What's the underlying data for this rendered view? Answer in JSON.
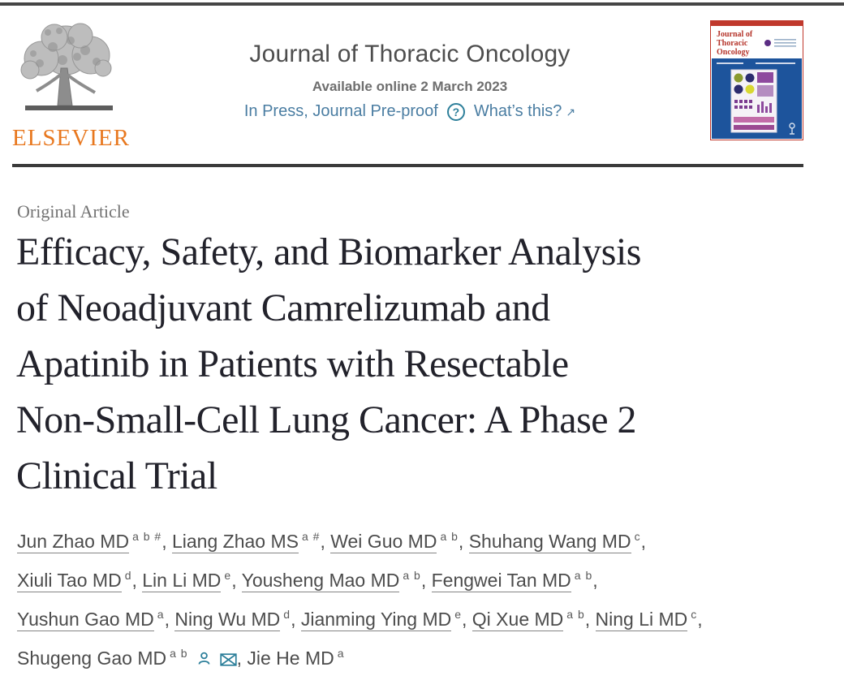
{
  "header": {
    "elsevier_wordmark": "ELSEVIER",
    "journal_title": "Journal of Thoracic Oncology",
    "available_online": "Available online 2 March 2023",
    "in_press_label": "In Press, Journal Pre-proof",
    "help_icon": "?",
    "whats_this_label": "What’s this?",
    "external_arrow": "↗"
  },
  "cover": {
    "title_lines": [
      "Journal of",
      "Thoracic",
      "Oncology"
    ]
  },
  "article": {
    "category": "Original Article",
    "title_lines": [
      "Efficacy, Safety, and Biomarker Analysis",
      "of Neoadjuvant Camrelizumab and",
      "Apatinib in Patients with Resectable",
      "Non-Small-Cell Lung Cancer: A Phase 2",
      "Clinical Trial"
    ]
  },
  "authors": {
    "lines": [
      [
        {
          "name": "Jun Zhao MD",
          "sup": "a b #",
          "underline": true
        },
        {
          "name": "Liang Zhao MS",
          "sup": "a #",
          "underline": true
        },
        {
          "name": "Wei Guo MD",
          "sup": "a b",
          "underline": true
        },
        {
          "name": "Shuhang Wang MD",
          "sup": "c",
          "underline": true
        }
      ],
      [
        {
          "name": "Xiuli Tao MD",
          "sup": "d",
          "underline": true
        },
        {
          "name": "Lin Li MD",
          "sup": "e",
          "underline": true
        },
        {
          "name": "Yousheng Mao MD",
          "sup": "a b",
          "underline": true
        },
        {
          "name": "Fengwei Tan MD",
          "sup": "a b",
          "underline": true
        }
      ],
      [
        {
          "name": "Yushun Gao MD",
          "sup": "a",
          "underline": true
        },
        {
          "name": "Ning Wu MD",
          "sup": "d",
          "underline": true
        },
        {
          "name": "Jianming Ying MD",
          "sup": "e",
          "underline": true
        },
        {
          "name": "Qi Xue MD",
          "sup": "a b",
          "underline": true
        },
        {
          "name": "Ning Li MD",
          "sup": "c",
          "underline": true
        }
      ],
      [
        {
          "name": "Shugeng Gao MD",
          "sup": "a b",
          "underline": false,
          "icons": [
            "person",
            "envelope"
          ]
        },
        {
          "name": "Jie He MD",
          "sup": "a",
          "underline": false,
          "last": true
        }
      ]
    ]
  },
  "colors": {
    "link_blue": "#4a7da2",
    "icon_teal": "#2d7f9a",
    "elsevier_orange": "#e8781f",
    "cover_blue": "#1d549c",
    "cover_red": "#c0382c",
    "title_text": "#22222b",
    "rule_dark": "#3a3a3a"
  }
}
